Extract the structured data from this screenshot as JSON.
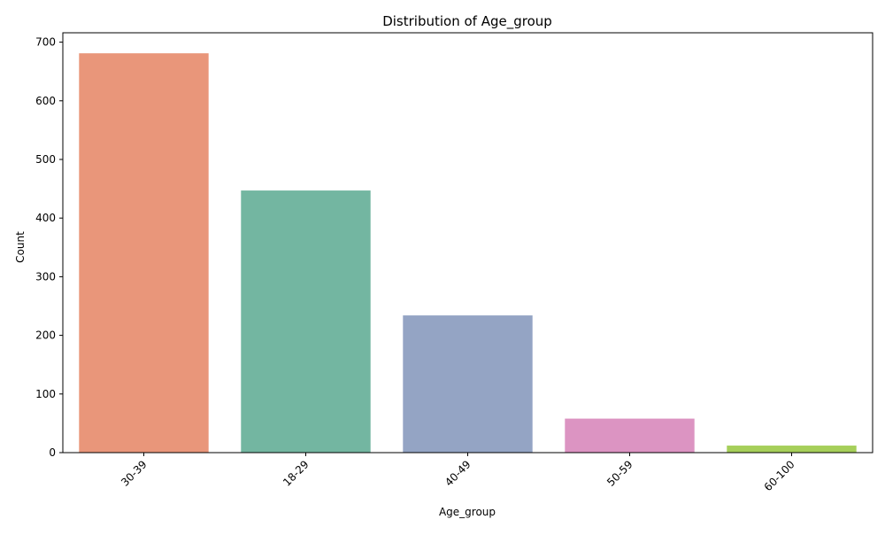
{
  "chart_data": {
    "type": "bar",
    "title": "Distribution of Age_group",
    "xlabel": "Age_group",
    "ylabel": "Count",
    "categories": [
      "30-39",
      "18-29",
      "40-49",
      "50-59",
      "60-100"
    ],
    "values": [
      681,
      447,
      234,
      58,
      12
    ],
    "colors": [
      "#e9967a",
      "#73b6a1",
      "#94a4c4",
      "#dc94c2",
      "#a6cf5a"
    ],
    "ylim": [
      0,
      716
    ],
    "yticks": [
      0,
      100,
      200,
      300,
      400,
      500,
      600,
      700
    ],
    "grid": false,
    "legend": "none"
  }
}
